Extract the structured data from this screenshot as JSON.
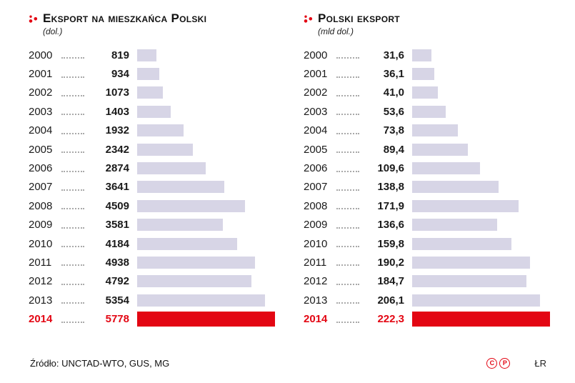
{
  "page": {
    "colors": {
      "accent_red": "#e30613",
      "bar_fill": "#d7d5e6",
      "leader_dots": "#a9a9a9",
      "text": "#1a1a1a"
    }
  },
  "footer": {
    "source": "Źródło: UNCTAD-WTO, GUS, MG",
    "copyright_badges": [
      "C",
      "P"
    ],
    "credit": "ŁR"
  },
  "chart_data": [
    {
      "type": "bar",
      "orientation": "horizontal",
      "title": "Eksport na mieszkańca Polski",
      "unit_label": "(dol.)",
      "categories": [
        "2000",
        "2001",
        "2002",
        "2003",
        "2004",
        "2005",
        "2006",
        "2007",
        "2008",
        "2009",
        "2010",
        "2011",
        "2012",
        "2013",
        "2014"
      ],
      "values": [
        819,
        934,
        1073,
        1403,
        1932,
        2342,
        2874,
        3641,
        4509,
        3581,
        4184,
        4938,
        4792,
        5354,
        5778
      ],
      "value_labels": [
        "819",
        "934",
        "1073",
        "1403",
        "1932",
        "2342",
        "2874",
        "3641",
        "4509",
        "3581",
        "4184",
        "4938",
        "4792",
        "5354",
        "5778"
      ],
      "highlight_index": 14,
      "highlight_color": "#e30613",
      "bar_color": "#d7d5e6",
      "xlim": [
        0,
        5778
      ],
      "grid": false,
      "legend": false
    },
    {
      "type": "bar",
      "orientation": "horizontal",
      "title": "Polski eksport",
      "unit_label": "(mld dol.)",
      "categories": [
        "2000",
        "2001",
        "2002",
        "2003",
        "2004",
        "2005",
        "2006",
        "2007",
        "2008",
        "2009",
        "2010",
        "2011",
        "2012",
        "2013",
        "2014"
      ],
      "values": [
        31.6,
        36.1,
        41.0,
        53.6,
        73.8,
        89.4,
        109.6,
        138.8,
        171.9,
        136.6,
        159.8,
        190.2,
        184.7,
        206.1,
        222.3
      ],
      "value_labels": [
        "31,6",
        "36,1",
        "41,0",
        "53,6",
        "73,8",
        "89,4",
        "109,6",
        "138,8",
        "171,9",
        "136,6",
        "159,8",
        "190,2",
        "184,7",
        "206,1",
        "222,3"
      ],
      "highlight_index": 14,
      "highlight_color": "#e30613",
      "bar_color": "#d7d5e6",
      "xlim": [
        0,
        222.3
      ],
      "grid": false,
      "legend": false
    }
  ]
}
